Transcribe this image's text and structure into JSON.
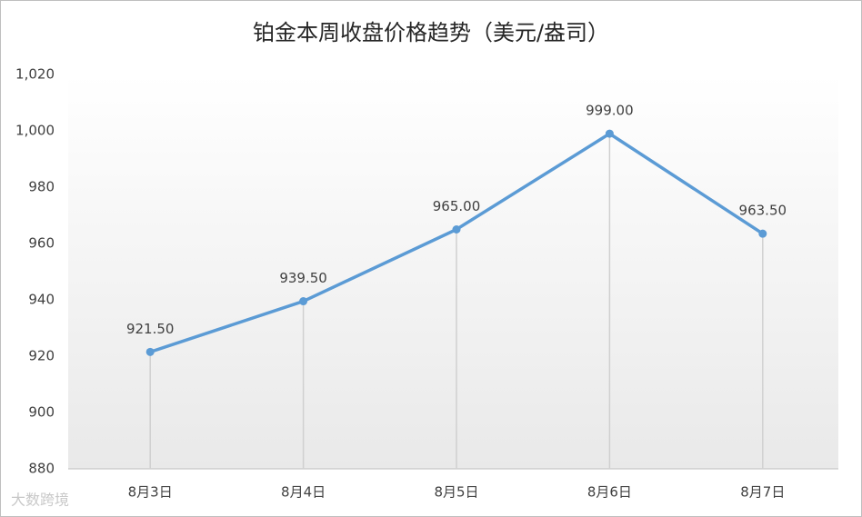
{
  "chart_data": {
    "type": "line",
    "title": "铂金本周收盘价格趋势（美元/盎司）",
    "categories": [
      "8月3日",
      "8月4日",
      "8月5日",
      "8月6日",
      "8月7日"
    ],
    "series": [
      {
        "color": "#5b9bd5",
        "values": [
          921.5,
          939.5,
          965,
          999,
          963.5
        ],
        "value_labels": [
          "921.50",
          "939.50",
          "965.00",
          "999.00",
          "963.50"
        ]
      }
    ],
    "ylim": [
      880,
      1020
    ],
    "yticks": [
      880,
      900,
      920,
      940,
      960,
      980,
      {
        "value": 1000,
        "label": "1,000"
      },
      {
        "value": 1020,
        "label": "1,020"
      }
    ],
    "grid": false,
    "drop_lines": true,
    "watermark": "大数跨境"
  }
}
